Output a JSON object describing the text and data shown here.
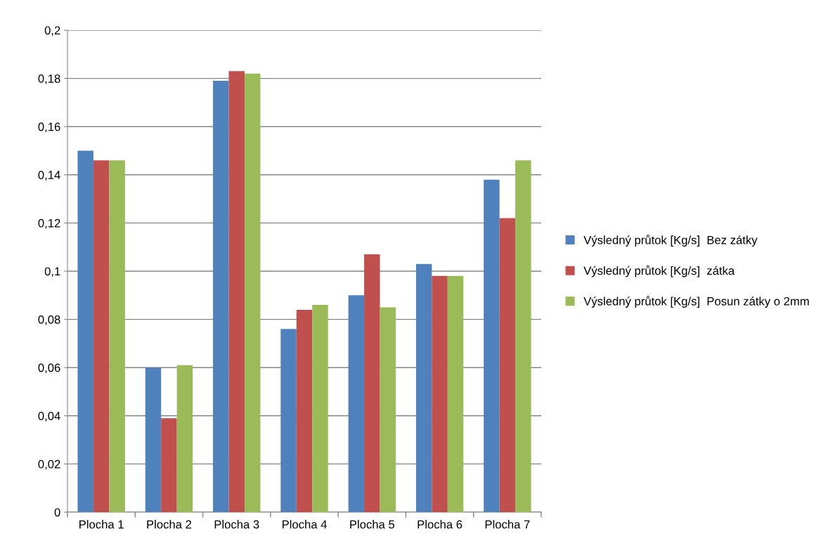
{
  "chart_data": {
    "type": "bar",
    "categories": [
      "Plocha 1",
      "Plocha 2",
      "Plocha 3",
      "Plocha 4",
      "Plocha 5",
      "Plocha 6",
      "Plocha 7"
    ],
    "series": [
      {
        "name": "Výsledný průtok [Kg/s]  Bez zátky",
        "color": "#4f81bd",
        "values": [
          0.15,
          0.06,
          0.179,
          0.076,
          0.09,
          0.103,
          0.138
        ]
      },
      {
        "name": "Výsledný průtok [Kg/s]  zátka",
        "color": "#c0504d",
        "values": [
          0.146,
          0.039,
          0.183,
          0.084,
          0.107,
          0.098,
          0.122
        ]
      },
      {
        "name": "Výsledný průtok [Kg/s]  Posun zátky o 2mm",
        "color": "#9bbb59",
        "values": [
          0.146,
          0.061,
          0.182,
          0.086,
          0.085,
          0.098,
          0.146
        ]
      }
    ],
    "ylim": [
      0,
      0.2
    ],
    "yticks": [
      0,
      {
        "value": 0.02,
        "label": "0,02"
      },
      {
        "value": 0.04,
        "label": "0,04"
      },
      {
        "value": 0.06,
        "label": "0,06"
      },
      {
        "value": 0.08,
        "label": "0,08"
      },
      {
        "value": 0.1,
        "label": "0,1"
      },
      {
        "value": 0.12,
        "label": "0,12"
      },
      {
        "value": 0.14,
        "label": "0,14"
      },
      {
        "value": 0.16,
        "label": "0,16"
      },
      {
        "value": 0.18,
        "label": "0,18"
      },
      {
        "value": 0.2,
        "label": "0,2"
      }
    ],
    "grid": "y",
    "legend": "right"
  }
}
